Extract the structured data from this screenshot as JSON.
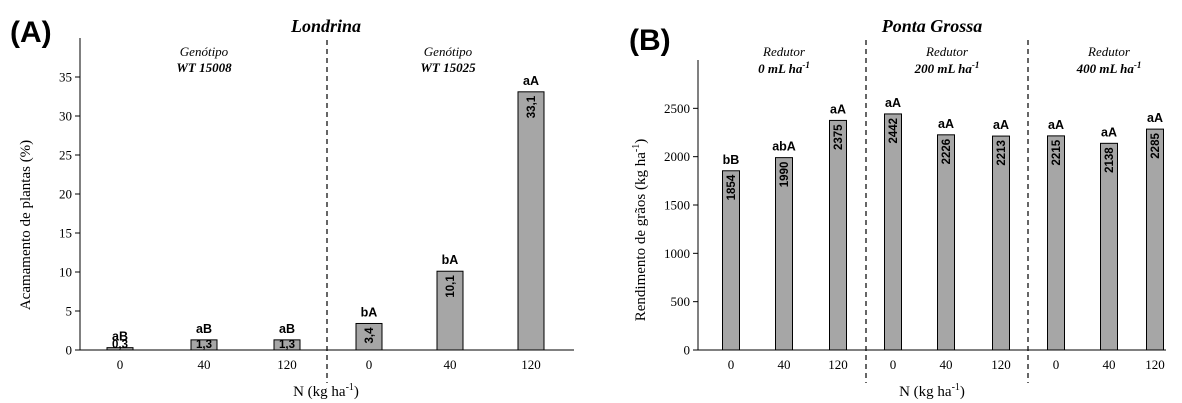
{
  "chart_data": [
    {
      "type": "bar",
      "panel": "(A)",
      "title": "Londrina",
      "xlabel": "N (kg ha",
      "xlabel_sup": "-1",
      "xlabel_end": ")",
      "ylabel": "Acamamento de plantas (%)",
      "ylim": [
        0,
        40
      ],
      "yticks": [
        0,
        5,
        10,
        15,
        20,
        25,
        30,
        35
      ],
      "grid": false,
      "groups": [
        {
          "line1": "Genótipo",
          "line2": "WT 15008",
          "line2_sup": "",
          "categories": [
            "0",
            "40",
            "120"
          ],
          "values": [
            0.3,
            1.3,
            1.3
          ],
          "value_labels": [
            "0,3",
            "1,3",
            "1,3"
          ],
          "letters": [
            "aB",
            "aB",
            "aB"
          ]
        },
        {
          "line1": "Genótipo",
          "line2": "WT 15025",
          "line2_sup": "",
          "categories": [
            "0",
            "40",
            "120"
          ],
          "values": [
            3.4,
            10.1,
            33.1
          ],
          "value_labels": [
            "3,4",
            "10,1",
            "33,1"
          ],
          "letters": [
            "bA",
            "bA",
            "aA"
          ]
        }
      ]
    },
    {
      "type": "bar",
      "panel": "(B)",
      "title": "Ponta Grossa",
      "xlabel": "N (kg ha",
      "xlabel_sup": "-1",
      "xlabel_end": ")",
      "ylabel": "Rendimento de grãos (kg ha",
      "ylabel_sup": "-1",
      "ylabel_end": ")",
      "ylim": [
        0,
        3000
      ],
      "yticks": [
        0,
        500,
        1000,
        1500,
        2000,
        2500
      ],
      "grid": false,
      "groups": [
        {
          "line1": "Redutor",
          "line2": "0 mL ha",
          "line2_sup": "-1",
          "categories": [
            "0",
            "40",
            "120"
          ],
          "values": [
            1854,
            1990,
            2375
          ],
          "value_labels": [
            "1854",
            "1990",
            "2375"
          ],
          "letters": [
            "bB",
            "abA",
            "aA"
          ]
        },
        {
          "line1": "Redutor",
          "line2": "200 mL ha",
          "line2_sup": "-1",
          "categories": [
            "0",
            "40",
            "120"
          ],
          "values": [
            2442,
            2226,
            2213
          ],
          "value_labels": [
            "2442",
            "2226",
            "2213"
          ],
          "letters": [
            "aA",
            "aA",
            "aA"
          ]
        },
        {
          "line1": "Redutor",
          "line2": "400 mL ha",
          "line2_sup": "-1",
          "categories": [
            "0",
            "40",
            "120"
          ],
          "values": [
            2215,
            2138,
            2285
          ],
          "value_labels": [
            "2215",
            "2138",
            "2285"
          ],
          "letters": [
            "aA",
            "aA",
            "aA"
          ]
        }
      ]
    }
  ]
}
